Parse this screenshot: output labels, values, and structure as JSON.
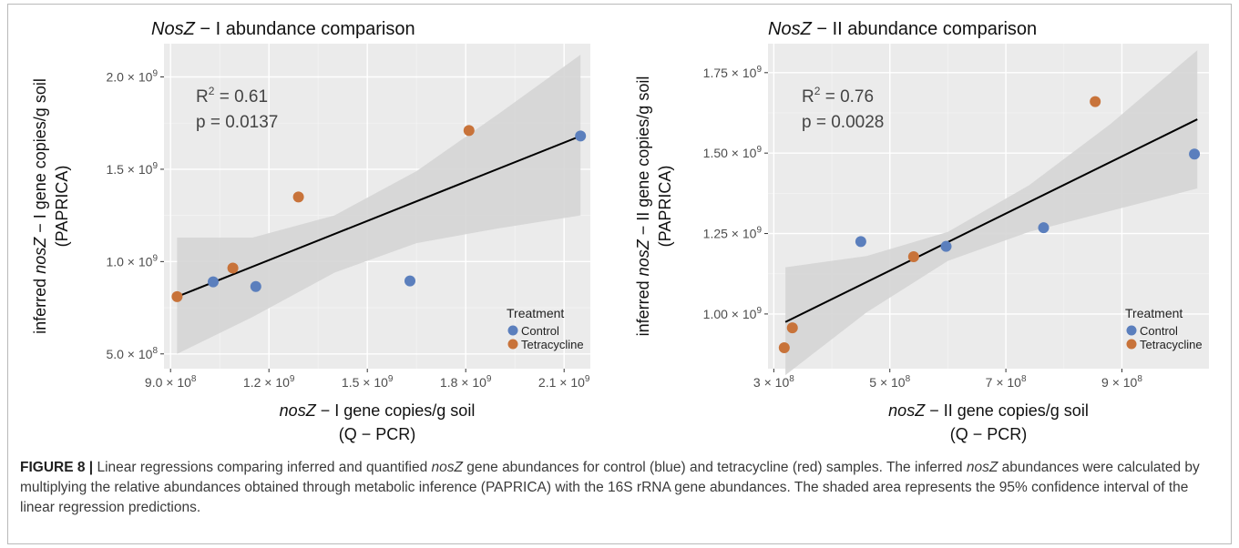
{
  "colors": {
    "control": "#5b7fbd",
    "tetracycline": "#c8733a",
    "panel_background": "#ebebeb",
    "confidence_band": "#d5d5d5",
    "fit_line": "#000000"
  },
  "chart_data": [
    {
      "type": "scatter",
      "title_italic": "NosZ",
      "title_rest": " − I abundance comparison",
      "xlabel_italic": "nosZ",
      "xlabel_rest": " − I gene copies/g soil",
      "xlabel_line2": "(Q − PCR)",
      "ylabel_prefix": "inferred ",
      "ylabel_italic": "nosZ",
      "ylabel_rest": " − I gene copies/g soil",
      "ylabel_line2": "(PAPRICA)",
      "xlim": [
        880000000,
        2180000000
      ],
      "ylim": [
        420000000,
        2180000000
      ],
      "xticks": [
        {
          "value": 900000000,
          "mant": "9.0",
          "exp": "8"
        },
        {
          "value": 1200000000,
          "mant": "1.2",
          "exp": "9"
        },
        {
          "value": 1500000000,
          "mant": "1.5",
          "exp": "9"
        },
        {
          "value": 1800000000,
          "mant": "1.8",
          "exp": "9"
        },
        {
          "value": 2100000000,
          "mant": "2.1",
          "exp": "9"
        }
      ],
      "yticks": [
        {
          "value": 500000000,
          "mant": "5.0",
          "exp": "8"
        },
        {
          "value": 1000000000,
          "mant": "1.0",
          "exp": "9"
        },
        {
          "value": 1500000000,
          "mant": "1.5",
          "exp": "9"
        },
        {
          "value": 2000000000,
          "mant": "2.0",
          "exp": "9"
        }
      ],
      "annotation": {
        "r2_label": "R",
        "r2_value": " = 0.61",
        "p_text": "p = 0.0137"
      },
      "legend": {
        "title": "Treatment",
        "placement": "bottom-right"
      },
      "fit": {
        "x": [
          920000000,
          2150000000
        ],
        "y": [
          810000000,
          1680000000
        ]
      },
      "band": {
        "x": [
          920000000,
          1150000000,
          1400000000,
          1650000000,
          1900000000,
          2150000000
        ],
        "upper": [
          1130000000,
          1130000000,
          1250000000,
          1490000000,
          1800000000,
          2120000000
        ],
        "lower": [
          500000000,
          700000000,
          940000000,
          1100000000,
          1180000000,
          1250000000
        ]
      },
      "series": [
        {
          "name": "Control",
          "color": "#5b7fbd",
          "points": [
            {
              "x": 1030000000,
              "y": 890000000
            },
            {
              "x": 1160000000,
              "y": 865000000
            },
            {
              "x": 1630000000,
              "y": 895000000
            },
            {
              "x": 2150000000,
              "y": 1680000000
            }
          ]
        },
        {
          "name": "Tetracycline",
          "color": "#c8733a",
          "points": [
            {
              "x": 920000000,
              "y": 810000000
            },
            {
              "x": 1090000000,
              "y": 965000000
            },
            {
              "x": 1290000000,
              "y": 1350000000
            },
            {
              "x": 1810000000,
              "y": 1710000000
            }
          ]
        }
      ]
    },
    {
      "type": "scatter",
      "title_italic": "NosZ",
      "title_rest": " − II abundance comparison",
      "xlabel_italic": "nosZ",
      "xlabel_rest": " − II gene copies/g soil",
      "xlabel_line2": "(Q − PCR)",
      "ylabel_prefix": "inferred ",
      "ylabel_italic": "nosZ",
      "ylabel_rest": " − II gene copies/g soil",
      "ylabel_line2": "(PAPRICA)",
      "xlim": [
        290000000,
        1050000000
      ],
      "ylim": [
        830000000,
        1840000000
      ],
      "xticks": [
        {
          "value": 300000000,
          "mant": "3",
          "exp": "8"
        },
        {
          "value": 500000000,
          "mant": "5",
          "exp": "8"
        },
        {
          "value": 700000000,
          "mant": "7",
          "exp": "8"
        },
        {
          "value": 900000000,
          "mant": "9",
          "exp": "8"
        }
      ],
      "yticks": [
        {
          "value": 1000000000,
          "mant": "1.00",
          "exp": "9"
        },
        {
          "value": 1250000000,
          "mant": "1.25",
          "exp": "9"
        },
        {
          "value": 1500000000,
          "mant": "1.50",
          "exp": "9"
        },
        {
          "value": 1750000000,
          "mant": "1.75",
          "exp": "9"
        }
      ],
      "annotation": {
        "r2_label": "R",
        "r2_value": " = 0.76",
        "p_text": "p = 0.0028"
      },
      "legend": {
        "title": "Treatment",
        "placement": "bottom-right"
      },
      "fit": {
        "x": [
          320000000,
          1030000000
        ],
        "y": [
          975000000,
          1605000000
        ]
      },
      "band": {
        "x": [
          320000000,
          460000000,
          600000000,
          740000000,
          880000000,
          1030000000
        ],
        "upper": [
          1145000000,
          1180000000,
          1255000000,
          1400000000,
          1590000000,
          1820000000
        ],
        "lower": [
          810000000,
          1005000000,
          1165000000,
          1255000000,
          1320000000,
          1390000000
        ]
      },
      "series": [
        {
          "name": "Control",
          "color": "#5b7fbd",
          "points": [
            {
              "x": 450000000,
              "y": 1225000000
            },
            {
              "x": 597000000,
              "y": 1210000000
            },
            {
              "x": 765000000,
              "y": 1268000000
            },
            {
              "x": 1025000000,
              "y": 1497000000
            }
          ]
        },
        {
          "name": "Tetracycline",
          "color": "#c8733a",
          "points": [
            {
              "x": 318000000,
              "y": 895000000
            },
            {
              "x": 332000000,
              "y": 957000000
            },
            {
              "x": 541000000,
              "y": 1178000000
            },
            {
              "x": 854000000,
              "y": 1660000000
            }
          ]
        }
      ]
    }
  ],
  "caption": {
    "label": "FIGURE 8 |",
    "seg1": " Linear regressions comparing inferred and quantified ",
    "italic1": "nosZ",
    "seg2": " gene abundances for control (blue) and tetracycline (red) samples. The inferred ",
    "italic2": "nosZ",
    "seg3": " abundances were calculated by multiplying the relative abundances obtained through metabolic inference (PAPRICA) with the 16S rRNA gene abundances. The shaded area represents the 95% confidence interval of the linear regression predictions."
  }
}
